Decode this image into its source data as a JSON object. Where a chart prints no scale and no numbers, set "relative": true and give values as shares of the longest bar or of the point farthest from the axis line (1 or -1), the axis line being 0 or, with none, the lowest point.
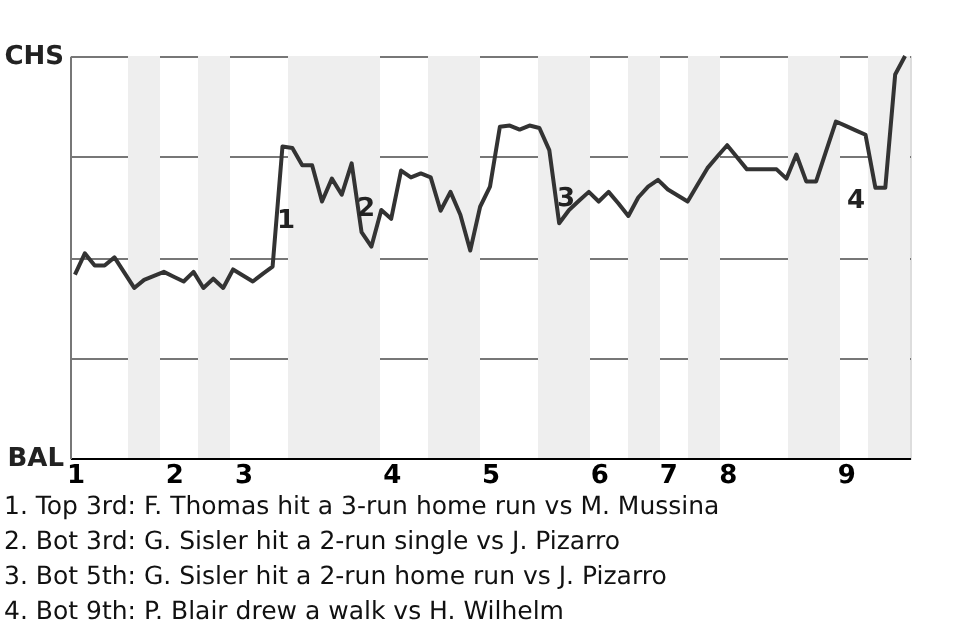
{
  "chart_data": {
    "type": "line",
    "categories": [
      "1",
      null,
      null,
      null,
      null,
      null,
      null,
      null,
      null,
      null,
      "2",
      null,
      null,
      null,
      null,
      null,
      null,
      "3",
      null,
      null,
      null,
      null,
      null,
      null,
      null,
      null,
      null,
      null,
      null,
      null,
      null,
      null,
      "4",
      null,
      null,
      null,
      null,
      null,
      null,
      null,
      null,
      null,
      "5",
      null,
      null,
      null,
      null,
      null,
      null,
      null,
      null,
      null,
      null,
      "6",
      null,
      null,
      null,
      null,
      null,
      null,
      "7",
      null,
      null,
      null,
      null,
      null,
      "8",
      null,
      null,
      null,
      null,
      null,
      null,
      null,
      null,
      null,
      null,
      null,
      "9",
      null,
      null,
      null,
      null,
      null,
      null
    ],
    "series": [
      {
        "color": "#333333",
        "values": [
          0.456,
          0.509,
          0.479,
          0.479,
          0.499,
          0.461,
          0.423,
          0.443,
          0.453,
          0.463,
          0.451,
          0.439,
          0.463,
          0.423,
          0.446,
          0.423,
          0.469,
          0.454,
          0.439,
          0.458,
          0.476,
          0.775,
          0.771,
          0.728,
          0.728,
          0.638,
          0.695,
          0.655,
          0.733,
          0.562,
          0.526,
          0.617,
          0.595,
          0.715,
          0.698,
          0.708,
          0.698,
          0.615,
          0.662,
          0.605,
          0.516,
          0.625,
          0.675,
          0.824,
          0.827,
          0.817,
          0.827,
          0.821,
          0.766,
          0.584,
          0.617,
          0.64,
          0.662,
          0.638,
          0.662,
          0.633,
          0.602,
          0.648,
          0.675,
          0.692,
          0.668,
          0.653,
          0.638,
          0.68,
          0.721,
          0.75,
          0.778,
          0.748,
          0.718,
          0.718,
          0.718,
          0.718,
          0.695,
          0.755,
          0.688,
          0.688,
          0.763,
          0.837,
          0.826,
          0.815,
          0.804,
          0.672,
          0.672,
          0.954,
          1.0
        ]
      }
    ],
    "relative": true,
    "grid": "y",
    "marker": "none",
    "line_style": "solid",
    "annotations": [
      "CHS",
      "BAL",
      "1",
      "2",
      "3",
      "4",
      "1. Top 3rd: F. Thomas hit a 3-run home run vs M. Mussina",
      "2. Bot 3rd: G. Sisler hit a 2-run single vs J. Pizarro",
      "3. Bot 5th: G. Sisler hit a 2-run home run vs J. Pizarro",
      "4. Bot 9th: P. Blair drew a walk vs H. Wilhelm"
    ]
  }
}
